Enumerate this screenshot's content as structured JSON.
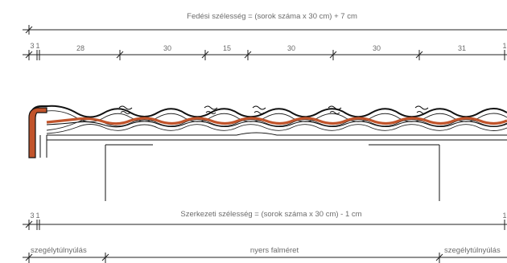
{
  "top_caption": "Fedési szélesség = (sorok száma x 30 cm) + 7 cm",
  "top_dims": [
    "3",
    "1",
    "28",
    "30",
    "15",
    "30",
    "30",
    "31",
    "1"
  ],
  "bottom_dims": [
    "3",
    "1",
    "1"
  ],
  "bottom_caption": "Szerkezeti szélesség = (sorok száma x 30 cm) - 1 cm",
  "edge_label_left": "szegélytúlnyúlás",
  "middle_label": "nyers falméret",
  "edge_label_right": "szegélytúlnyúlás",
  "colors": {
    "tile_red": "#c1542b",
    "line": "#222222",
    "text": "#6b6b6b"
  }
}
